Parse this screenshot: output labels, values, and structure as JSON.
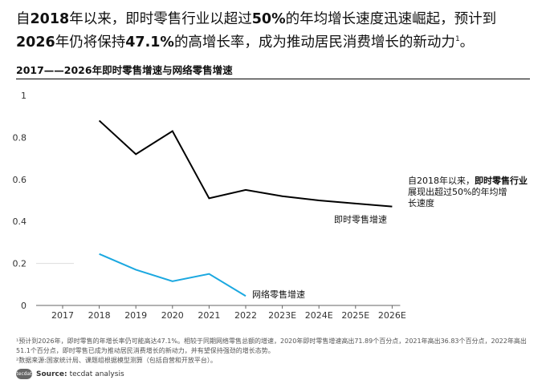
{
  "headline": {
    "part1": "自",
    "bold1": "2018",
    "part2": "年以来，即时零售行业以超过",
    "bold2": "50%",
    "part3": "的年均增长速度迅速崛起，预计到",
    "bold3": "2026",
    "part4": "年仍将保持",
    "bold4": "47.1%",
    "part5": "的高增长率，成为推动居民消费增长的新动力",
    "sup": "1",
    "part6": "。"
  },
  "chart_data": {
    "type": "line",
    "title": "2017——2026年即时零售增速与网络零售增速",
    "categories": [
      "2017",
      "2018",
      "2019",
      "2020",
      "2021",
      "2022",
      "2023E",
      "2024E",
      "2025E",
      "2026E"
    ],
    "ylim": [
      0,
      1
    ],
    "yticks": [
      0,
      0.2,
      0.4,
      0.6,
      0.8,
      1
    ],
    "ytick_labels": [
      "0",
      "0.2",
      "0.4",
      "0.6",
      "0.8",
      "1"
    ],
    "grid": false,
    "series": [
      {
        "name": "即时零售增速",
        "color": "#000000",
        "values": [
          null,
          0.88,
          0.72,
          0.83,
          0.51,
          0.55,
          0.52,
          0.5,
          0.485,
          0.471
        ]
      },
      {
        "name": "网络零售增速",
        "color": "#1ba8e0",
        "values": [
          null,
          0.245,
          0.17,
          0.115,
          0.15,
          0.045,
          null,
          null,
          null,
          null
        ]
      }
    ],
    "annotation": {
      "part1": "自2018年以来，",
      "bold": "即时零售行业",
      "part2": "展现出超过50%的年均增长速度"
    }
  },
  "notes": [
    "¹预计到2026年，即时零售的年增长率仍可能高达47.1%。相较于同期网络零售总额的增速，2020年即时零售增速高出71.89个百分点，2021年高出36.83个百分点，2022年高出51.1个百分点，即时零售已成为推动居民消费增长的新动力，并有望保持强劲的增长态势。",
    "²数据来源:国家统计局、课题组根据模型测算（包括自营和开放平台）。"
  ],
  "source": {
    "logo": "tecdat",
    "label": "Source:",
    "text": "tecdat analysis"
  }
}
